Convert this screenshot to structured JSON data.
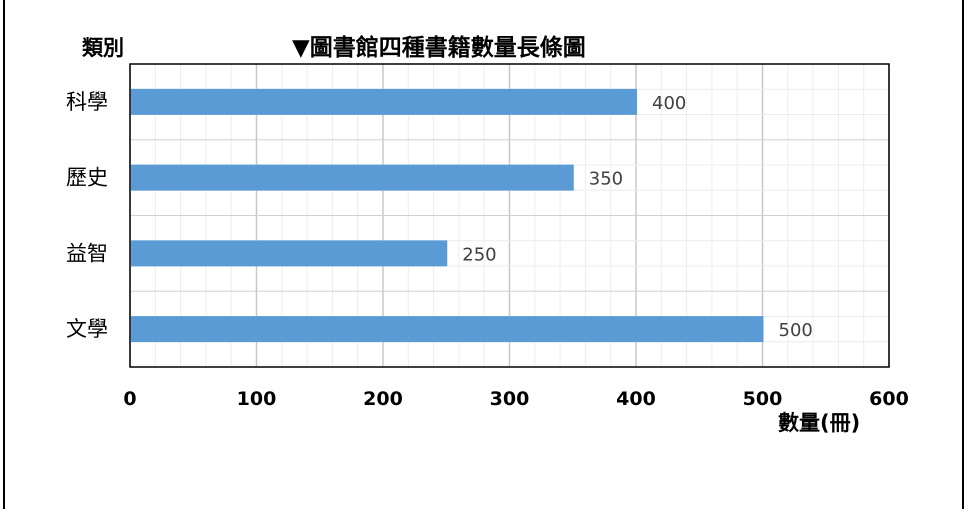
{
  "chart_data": {
    "type": "bar",
    "orientation": "horizontal",
    "title": "▼圖書館四種書籍數量長條圖",
    "ylabel": "類別",
    "xlabel": "數量(冊)",
    "categories": [
      "科學",
      "歷史",
      "益智",
      "文學"
    ],
    "values": [
      400,
      350,
      250,
      500
    ],
    "value_labels": [
      "400",
      "350",
      "250",
      "500"
    ],
    "xlim": [
      0,
      600
    ],
    "ticks": [
      "0",
      "100",
      "200",
      "300",
      "400",
      "500",
      "600"
    ],
    "grid": true,
    "bar_color": "#5b9bd5"
  }
}
